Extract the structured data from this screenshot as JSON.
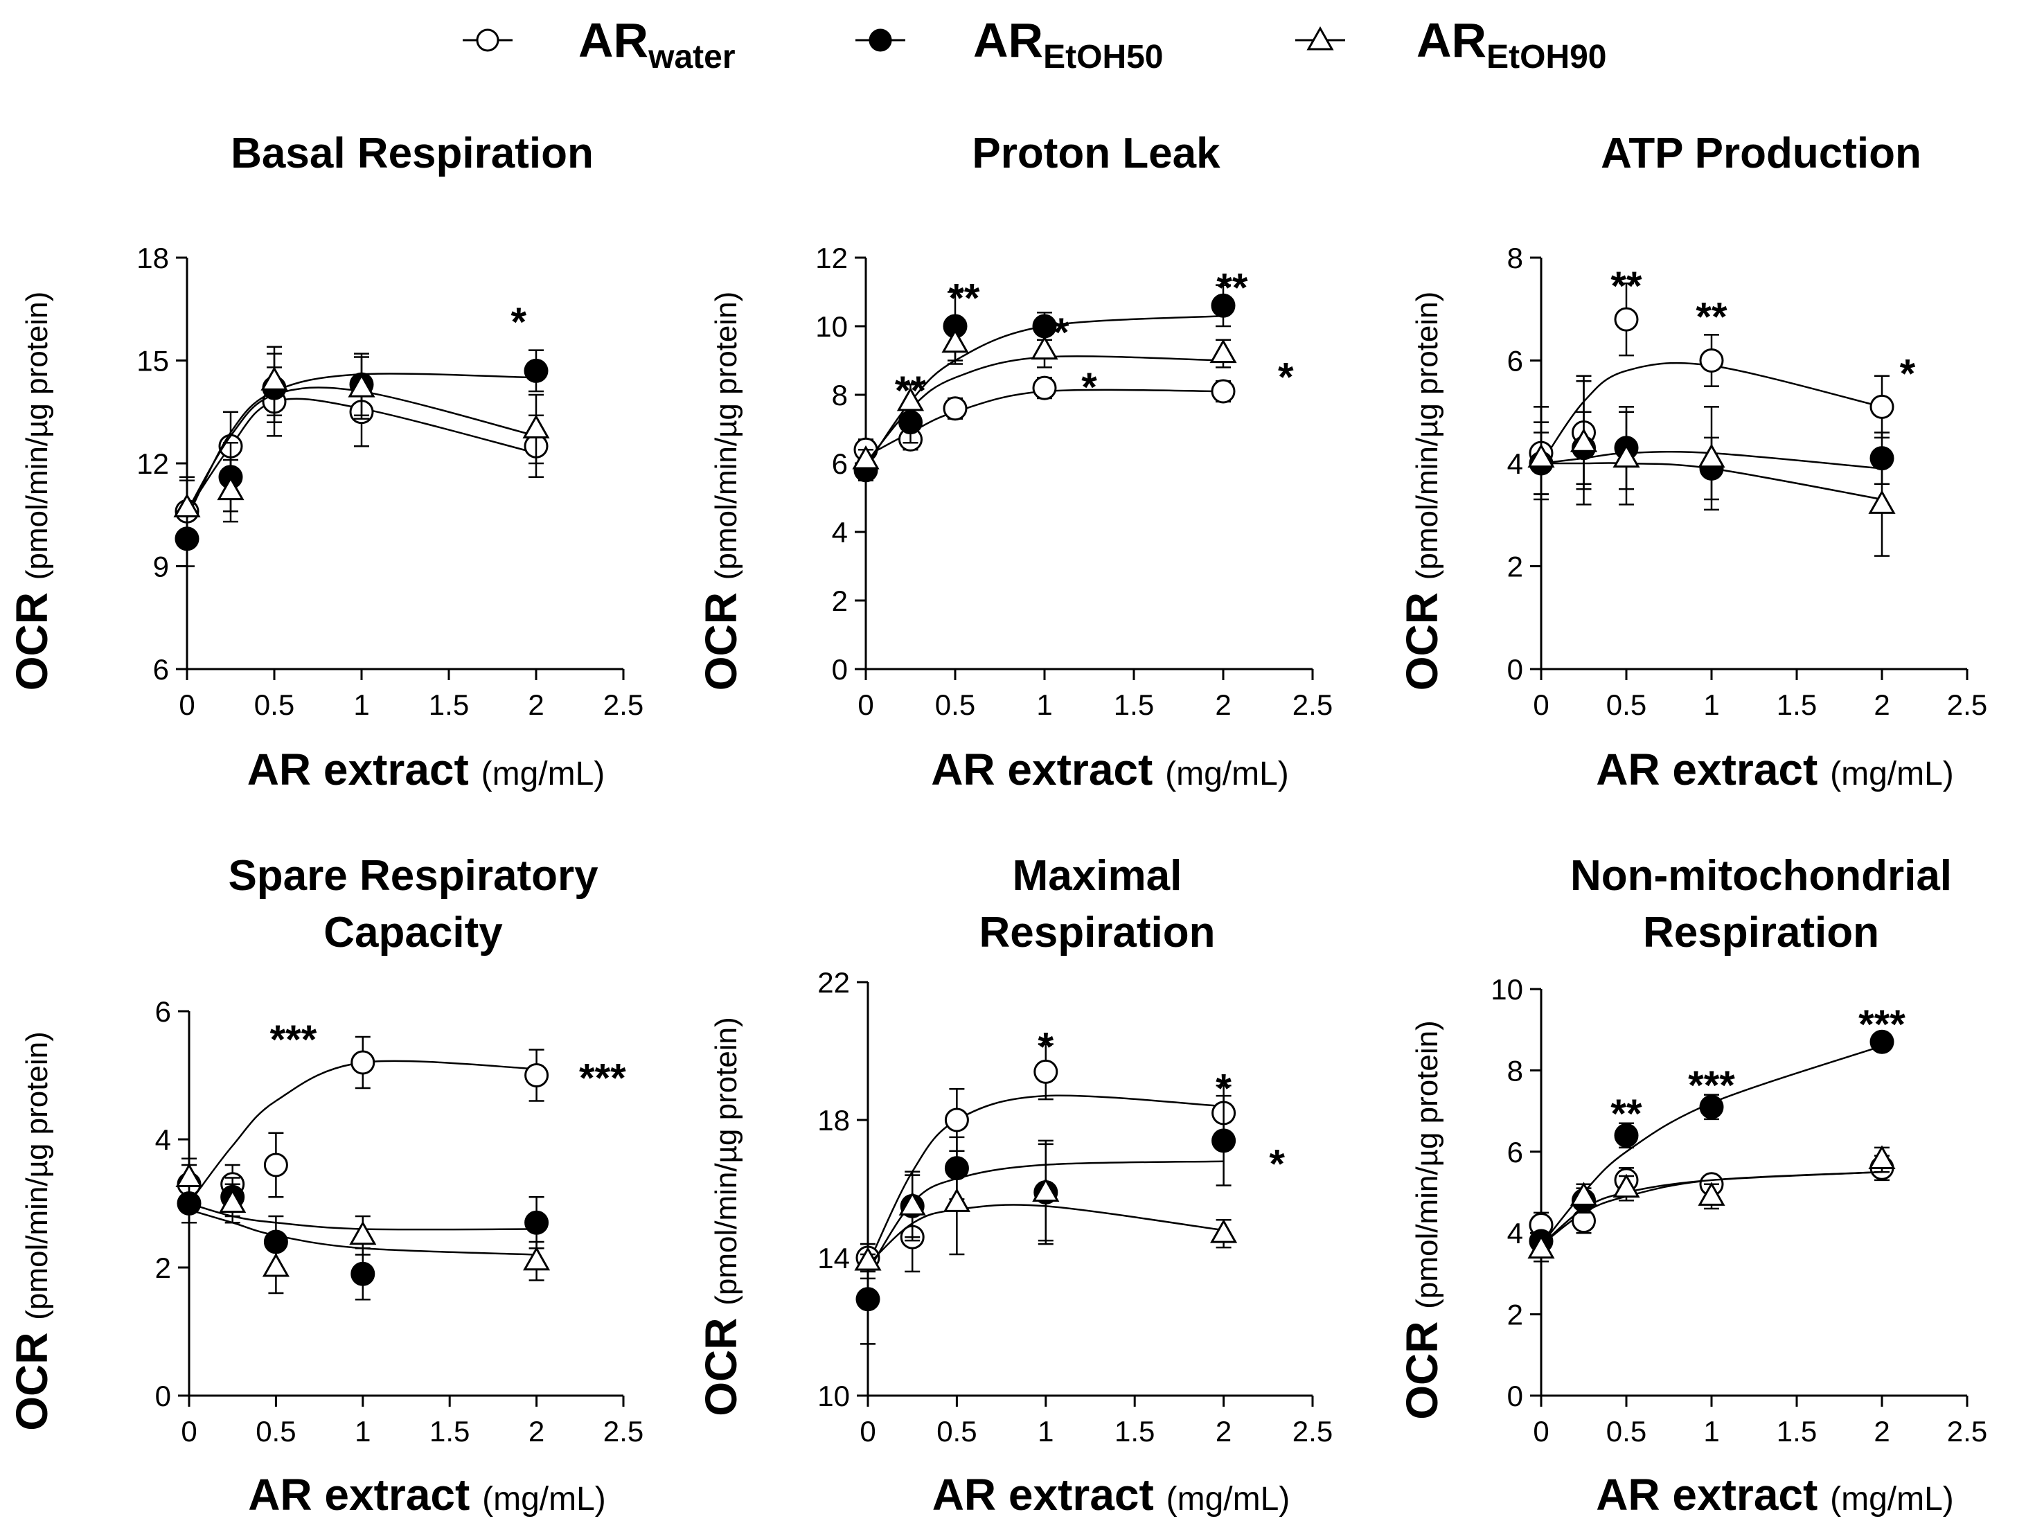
{
  "legend": [
    {
      "base": "AR",
      "sub": "water",
      "marker": "open-circle"
    },
    {
      "base": "AR",
      "sub": "EtOH50",
      "marker": "filled-circle"
    },
    {
      "base": "AR",
      "sub": "EtOH90",
      "marker": "open-triangle"
    }
  ],
  "colors": {
    "ink": "#000000",
    "fill_open": "#ffffff"
  },
  "chart_data": [
    {
      "type": "scatter",
      "title": [
        "Basal Respiration"
      ],
      "ylabel": {
        "main": "OCR",
        "unit": "(pmol/min/µg protein)"
      },
      "xlabel": {
        "main": "AR extract",
        "unit": "(mg/mL)"
      },
      "ylim": [
        6,
        18
      ],
      "yticks": [
        6,
        9,
        12,
        15,
        18
      ],
      "ytick_labels": [
        "6",
        "9",
        "12",
        "15",
        "18"
      ],
      "xlim": [
        0,
        2.5
      ],
      "xticks": [
        0,
        0.5,
        1,
        1.5,
        2,
        2.5
      ],
      "xtick_labels": [
        "0",
        "0.5",
        "1",
        "1.5",
        "2",
        "2.5"
      ],
      "x": [
        0,
        0.25,
        0.5,
        1,
        2
      ],
      "series": [
        {
          "name": "ARwater",
          "marker": "open-circle",
          "values": [
            10.6,
            12.5,
            13.8,
            13.5,
            12.5
          ],
          "errors": [
            0.9,
            1.0,
            1.0,
            1.0,
            0.9
          ],
          "fit": [
            10.6,
            12.5,
            13.8,
            13.6,
            12.3
          ]
        },
        {
          "name": "AREtOH50",
          "marker": "filled-circle",
          "values": [
            9.8,
            11.6,
            14.2,
            14.3,
            14.7
          ],
          "errors": [
            0.8,
            1.0,
            1.0,
            0.9,
            0.6
          ],
          "fit": [
            10.4,
            12.9,
            14.1,
            14.6,
            14.5
          ]
        },
        {
          "name": "AREtOH90",
          "marker": "open-triangle",
          "values": [
            10.7,
            11.2,
            14.4,
            14.2,
            13.0
          ],
          "errors": [
            0.9,
            0.9,
            1.0,
            0.9,
            1.0
          ],
          "fit": [
            10.6,
            12.8,
            14.0,
            14.1,
            12.8
          ]
        }
      ],
      "annotations": [
        {
          "text": "*",
          "x": 1.9,
          "y": 16.2
        }
      ]
    },
    {
      "type": "scatter",
      "title": [
        "Proton Leak"
      ],
      "ylabel": {
        "main": "OCR",
        "unit": "(pmol/min/µg protein)"
      },
      "xlabel": {
        "main": "AR extract",
        "unit": "(mg/mL)"
      },
      "ylim": [
        0,
        12
      ],
      "yticks": [
        0,
        2,
        4,
        6,
        8,
        10,
        12
      ],
      "ytick_labels": [
        "0",
        "2",
        "4",
        "6",
        "8",
        "10",
        "12"
      ],
      "xlim": [
        0,
        2.5
      ],
      "xticks": [
        0,
        0.5,
        1,
        1.5,
        2,
        2.5
      ],
      "xtick_labels": [
        "0",
        "0.5",
        "1",
        "1.5",
        "2",
        "2.5"
      ],
      "x": [
        0,
        0.25,
        0.5,
        1,
        2
      ],
      "series": [
        {
          "name": "ARwater",
          "marker": "open-circle",
          "values": [
            6.4,
            6.7,
            7.6,
            8.2,
            8.1
          ],
          "errors": [
            0.3,
            0.3,
            0.3,
            0.3,
            0.3
          ],
          "fit": [
            6.2,
            6.9,
            7.5,
            8.1,
            8.1
          ]
        },
        {
          "name": "AREtOH50",
          "marker": "filled-circle",
          "values": [
            5.8,
            7.2,
            10.0,
            10.0,
            10.6
          ],
          "errors": [
            0.3,
            0.6,
            1.0,
            0.4,
            0.6
          ],
          "fit": [
            5.9,
            7.8,
            9.0,
            10.0,
            10.3
          ]
        },
        {
          "name": "AREtOH90",
          "marker": "open-triangle",
          "values": [
            6.1,
            7.8,
            9.5,
            9.3,
            9.2
          ],
          "errors": [
            0.3,
            0.5,
            0.6,
            0.5,
            0.4
          ],
          "fit": [
            6.0,
            7.6,
            8.5,
            9.1,
            9.0
          ]
        }
      ],
      "annotations": [
        {
          "text": "**",
          "x": 0.25,
          "y": 8.2
        },
        {
          "text": "**",
          "x": 0.55,
          "y": 10.9
        },
        {
          "text": "**",
          "x": 1.05,
          "y": 9.9
        },
        {
          "text": "*",
          "x": 1.25,
          "y": 8.3
        },
        {
          "text": "**",
          "x": 2.05,
          "y": 11.2
        },
        {
          "text": "*",
          "x": 2.35,
          "y": 8.6
        }
      ]
    },
    {
      "type": "scatter",
      "title": [
        "ATP Production"
      ],
      "ylabel": {
        "main": "OCR",
        "unit": "(pmol/min/µg protein)"
      },
      "xlabel": {
        "main": "AR extract",
        "unit": "(mg/mL)"
      },
      "ylim": [
        0,
        8
      ],
      "yticks": [
        0,
        2,
        4,
        6,
        8
      ],
      "ytick_labels": [
        "0",
        "2",
        "4",
        "6",
        "8"
      ],
      "xlim": [
        0,
        2.5
      ],
      "xticks": [
        0,
        0.5,
        1,
        1.5,
        2,
        2.5
      ],
      "xtick_labels": [
        "0",
        "0.5",
        "1",
        "1.5",
        "2",
        "2.5"
      ],
      "x": [
        0,
        0.25,
        0.5,
        1,
        2
      ],
      "series": [
        {
          "name": "ARwater",
          "marker": "open-circle",
          "values": [
            4.2,
            4.6,
            6.8,
            6.0,
            5.1
          ],
          "errors": [
            0.9,
            1.1,
            0.7,
            0.5,
            0.6
          ],
          "fit": [
            4.0,
            5.2,
            5.8,
            5.9,
            5.1
          ]
        },
        {
          "name": "AREtOH50",
          "marker": "filled-circle",
          "values": [
            4.0,
            4.3,
            4.3,
            3.9,
            4.1
          ],
          "errors": [
            0.6,
            0.7,
            0.8,
            0.6,
            0.5
          ],
          "fit": [
            4.0,
            4.1,
            4.2,
            4.2,
            3.9
          ]
        },
        {
          "name": "AREtOH90",
          "marker": "open-triangle",
          "values": [
            4.1,
            4.4,
            4.1,
            4.1,
            3.2
          ],
          "errors": [
            0.7,
            1.2,
            0.9,
            1.0,
            1.0
          ],
          "fit": [
            4.0,
            4.0,
            4.0,
            3.9,
            3.3
          ]
        }
      ],
      "annotations": [
        {
          "text": "**",
          "x": 0.5,
          "y": 7.5
        },
        {
          "text": "**",
          "x": 1.0,
          "y": 6.9
        },
        {
          "text": "*",
          "x": 2.15,
          "y": 5.8
        }
      ]
    },
    {
      "type": "scatter",
      "title": [
        "Spare Respiratory",
        "Capacity"
      ],
      "ylabel": {
        "main": "OCR",
        "unit": "(pmol/min/µg protein)"
      },
      "xlabel": {
        "main": "AR extract",
        "unit": "(mg/mL)"
      },
      "ylim": [
        0,
        6
      ],
      "yticks": [
        0,
        2,
        4,
        6
      ],
      "ytick_labels": [
        "0",
        "2",
        "4",
        "6"
      ],
      "xlim": [
        0,
        2.5
      ],
      "xticks": [
        0,
        0.5,
        1,
        1.5,
        2,
        2.5
      ],
      "xtick_labels": [
        "0",
        "0.5",
        "1",
        "1.5",
        "2",
        "2.5"
      ],
      "x": [
        0,
        0.25,
        0.5,
        1,
        2
      ],
      "series": [
        {
          "name": "ARwater",
          "marker": "open-circle",
          "values": [
            3.3,
            3.3,
            3.6,
            5.2,
            5.0
          ],
          "errors": [
            0.3,
            0.3,
            0.5,
            0.4,
            0.4
          ],
          "fit": [
            3.0,
            3.9,
            4.6,
            5.2,
            5.1
          ]
        },
        {
          "name": "AREtOH50",
          "marker": "filled-circle",
          "values": [
            3.0,
            3.1,
            2.4,
            1.9,
            2.7
          ],
          "errors": [
            0.3,
            0.3,
            0.4,
            0.4,
            0.4
          ],
          "fit": [
            2.9,
            2.7,
            2.5,
            2.3,
            2.2
          ]
        },
        {
          "name": "AREtOH90",
          "marker": "open-triangle",
          "values": [
            3.4,
            3.0,
            2.0,
            2.5,
            2.1
          ],
          "errors": [
            0.3,
            0.3,
            0.4,
            0.3,
            0.3
          ],
          "fit": [
            3.0,
            2.8,
            2.7,
            2.6,
            2.6
          ]
        }
      ],
      "annotations": [
        {
          "text": "***",
          "x": 0.6,
          "y": 5.6
        },
        {
          "text": "***",
          "x": 2.38,
          "y": 5.0
        }
      ]
    },
    {
      "type": "scatter",
      "title": [
        "Maximal",
        "Respiration"
      ],
      "ylabel": {
        "main": "OCR",
        "unit": "(pmol/min/µg protein)"
      },
      "xlabel": {
        "main": "AR extract",
        "unit": "(mg/mL)"
      },
      "ylim": [
        10,
        22
      ],
      "yticks": [
        10,
        14,
        18,
        22
      ],
      "ytick_labels": [
        "10",
        "14",
        "18",
        "22"
      ],
      "xlim": [
        0,
        2.5
      ],
      "xticks": [
        0,
        0.5,
        1,
        1.5,
        2,
        2.5
      ],
      "xtick_labels": [
        "0",
        "0.5",
        "1",
        "1.5",
        "2",
        "2.5"
      ],
      "x": [
        0,
        0.25,
        0.5,
        1,
        2
      ],
      "series": [
        {
          "name": "ARwater",
          "marker": "open-circle",
          "values": [
            14.0,
            14.6,
            18.0,
            19.4,
            18.2
          ],
          "errors": [
            0.4,
            1.0,
            0.9,
            0.8,
            0.8
          ],
          "fit": [
            13.8,
            16.5,
            18.0,
            18.7,
            18.4
          ]
        },
        {
          "name": "AREtOH50",
          "marker": "filled-circle",
          "values": [
            12.8,
            15.5,
            16.6,
            15.9,
            17.4
          ],
          "errors": [
            1.3,
            1.0,
            0.9,
            1.5,
            1.3
          ],
          "fit": [
            13.6,
            15.6,
            16.3,
            16.7,
            16.8
          ]
        },
        {
          "name": "AREtOH90",
          "marker": "open-triangle",
          "values": [
            13.9,
            15.5,
            15.6,
            15.9,
            14.7
          ],
          "errors": [
            0.5,
            0.9,
            1.5,
            1.4,
            0.4
          ],
          "fit": [
            13.8,
            15.0,
            15.4,
            15.5,
            14.8
          ]
        }
      ],
      "annotations": [
        {
          "text": "*",
          "x": 1.0,
          "y": 20.2
        },
        {
          "text": "*",
          "x": 2.0,
          "y": 19.0
        },
        {
          "text": "*",
          "x": 2.3,
          "y": 16.8
        }
      ]
    },
    {
      "type": "scatter",
      "title": [
        "Non-mitochondrial",
        "Respiration"
      ],
      "ylabel": {
        "main": "OCR",
        "unit": "(pmol/min/µg protein)"
      },
      "xlabel": {
        "main": "AR extract",
        "unit": "(mg/mL)"
      },
      "ylim": [
        0,
        10
      ],
      "yticks": [
        0,
        2,
        4,
        6,
        8,
        10
      ],
      "ytick_labels": [
        "0",
        "2",
        "4",
        "6",
        "8",
        "10"
      ],
      "xlim": [
        0,
        2.5
      ],
      "xticks": [
        0,
        0.5,
        1,
        1.5,
        2,
        2.5
      ],
      "xtick_labels": [
        "0",
        "0.5",
        "1",
        "1.5",
        "2",
        "2.5"
      ],
      "x": [
        0,
        0.25,
        0.5,
        1,
        2
      ],
      "series": [
        {
          "name": "ARwater",
          "marker": "open-circle",
          "values": [
            4.2,
            4.3,
            5.3,
            5.2,
            5.6
          ],
          "errors": [
            0.3,
            0.3,
            0.3,
            0.2,
            0.3
          ],
          "fit": [
            3.7,
            4.5,
            4.9,
            5.3,
            5.5
          ]
        },
        {
          "name": "AREtOH50",
          "marker": "filled-circle",
          "values": [
            3.8,
            4.8,
            6.4,
            7.1,
            8.7
          ],
          "errors": [
            0.2,
            0.3,
            0.3,
            0.3,
            0.2
          ],
          "fit": [
            3.7,
            5.0,
            6.0,
            7.2,
            8.6
          ]
        },
        {
          "name": "AREtOH90",
          "marker": "open-triangle",
          "values": [
            3.6,
            4.9,
            5.1,
            4.9,
            5.8
          ],
          "errors": [
            0.3,
            0.3,
            0.3,
            0.3,
            0.3
          ],
          "fit": [
            3.7,
            4.6,
            5.0,
            5.3,
            5.5
          ]
        }
      ],
      "annotations": [
        {
          "text": "**",
          "x": 0.5,
          "y": 7.0
        },
        {
          "text": "***",
          "x": 1.0,
          "y": 7.7
        },
        {
          "text": "***",
          "x": 2.0,
          "y": 9.2
        }
      ]
    }
  ]
}
